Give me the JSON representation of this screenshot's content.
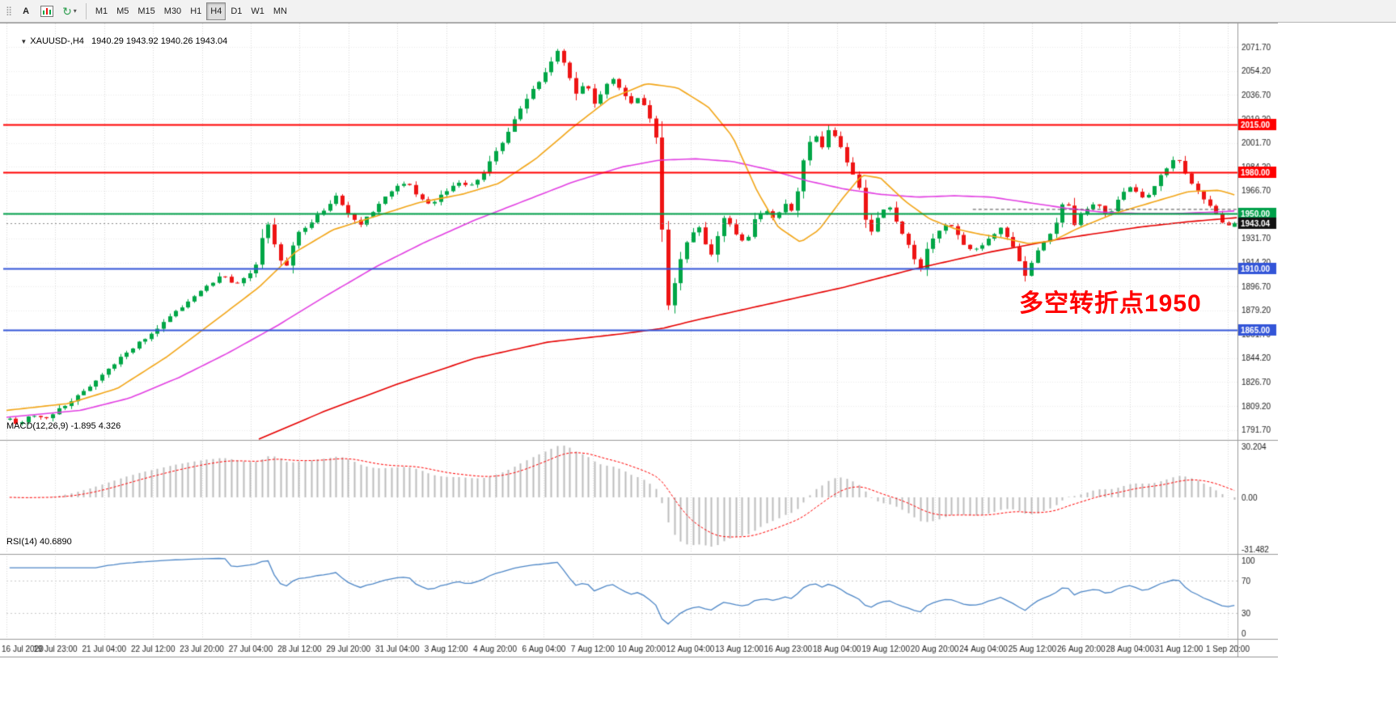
{
  "colors": {
    "bull": "#00A646",
    "bear": "#EE1414",
    "grid_v": "#D9D9D9",
    "grid_h": "#EBEBEB",
    "ma_fast_orange": "#F2A516",
    "ma_mid_magenta": "#E23FE2",
    "ma_slow_red": "#E60000",
    "hline_red": "#FF0000",
    "hline_green": "#00A04A",
    "hline_blue": "#3355D8",
    "price_badge_bg": "#121212",
    "macd_bar": "#BCBCBC",
    "macd_signal": "#FF0000",
    "rsi_line": "#4E87C7",
    "rsi_level": "#C9C9C9",
    "axis_text": "#1C1C1C",
    "border": "#9A9A9A",
    "annotation_red": "#FF0000",
    "trend_dark": "#4A4A4A"
  },
  "toolbar": {
    "text_tool_label": "A",
    "timeframes": [
      "M1",
      "M5",
      "M15",
      "M30",
      "H1",
      "H4",
      "D1",
      "W1",
      "MN"
    ],
    "active_timeframe": "H4"
  },
  "chart": {
    "symbol": "XAUUSD-",
    "timeframe": "H4",
    "symbol_line": "XAUUSD-,H4   1940.29 1943.92 1940.26 1943.04",
    "ohlc": {
      "open": "1940.29",
      "high": "1943.92",
      "low": "1940.26",
      "close": "1943.04"
    },
    "annotation_text": "多空转折点1950",
    "current_price": 1943.04,
    "current_price_label": "1943.04",
    "price_axis_labels": [
      "2071.70",
      "2054.20",
      "2036.70",
      "2019.20",
      "2001.70",
      "1984.20",
      "1966.70",
      "1949.20",
      "1931.70",
      "1914.20",
      "1896.70",
      "1879.20",
      "1861.70",
      "1844.20",
      "1826.70",
      "1809.20",
      "1791.70"
    ],
    "hlines": [
      {
        "label": "2015.00",
        "value": 2015.0,
        "color_key": "hline_red"
      },
      {
        "label": "1980.00",
        "value": 1980.0,
        "color_key": "hline_red"
      },
      {
        "label": "1950.00",
        "value": 1950.0,
        "color_key": "hline_green"
      },
      {
        "label": "1910.00",
        "value": 1910.0,
        "color_key": "hline_blue"
      },
      {
        "label": "1865.00",
        "value": 1865.0,
        "color_key": "hline_blue"
      }
    ],
    "date_labels": [
      "16 Jul 2020",
      "19 Jul 23:00",
      "21 Jul 04:00",
      "22 Jul 12:00",
      "23 Jul 20:00",
      "27 Jul 04:00",
      "28 Jul 12:00",
      "29 Jul 20:00",
      "31 Jul 04:00",
      "3 Aug 12:00",
      "4 Aug 20:00",
      "6 Aug 04:00",
      "7 Aug 12:00",
      "10 Aug 20:00",
      "12 Aug 04:00",
      "13 Aug 12:00",
      "16 Aug 23:00",
      "18 Aug 04:00",
      "19 Aug 12:00",
      "20 Aug 20:00",
      "24 Aug 04:00",
      "25 Aug 12:00",
      "26 Aug 20:00",
      "28 Aug 04:00",
      "31 Aug 12:00",
      "1 Sep 20:00"
    ]
  },
  "indicators": {
    "macd": {
      "label": "MACD(12,26,9) -1.895 4.326",
      "fast": 12,
      "slow": 26,
      "signal": 9,
      "value": "-1.895",
      "signal_value": "4.326",
      "axis": [
        "30.204",
        "0.00",
        "-31.482"
      ]
    },
    "rsi": {
      "label": "RSI(14) 40.6890",
      "period": 14,
      "value": "40.6890",
      "axis": [
        "100",
        "70",
        "30",
        "0"
      ],
      "levels": [
        70,
        30
      ]
    }
  },
  "chart_data": {
    "type": "candlestick",
    "title": "XAUUSD- H4",
    "ylim": [
      1785,
      2089
    ],
    "grid": true,
    "candle_count": 200,
    "noise_seed": 1113,
    "last_candle_ohlc": [
      1940.29,
      1943.92,
      1940.26,
      1943.04
    ],
    "price_anchors": [
      [
        0.0,
        1800
      ],
      [
        0.01,
        1796
      ],
      [
        0.02,
        1803
      ],
      [
        0.032,
        1799
      ],
      [
        0.044,
        1808
      ],
      [
        0.054,
        1814
      ],
      [
        0.064,
        1821
      ],
      [
        0.074,
        1828
      ],
      [
        0.084,
        1838
      ],
      [
        0.096,
        1847
      ],
      [
        0.108,
        1856
      ],
      [
        0.122,
        1865
      ],
      [
        0.135,
        1877
      ],
      [
        0.15,
        1887
      ],
      [
        0.163,
        1897
      ],
      [
        0.175,
        1905
      ],
      [
        0.185,
        1898
      ],
      [
        0.196,
        1904
      ],
      [
        0.203,
        1913
      ],
      [
        0.209,
        1939
      ],
      [
        0.214,
        1943
      ],
      [
        0.22,
        1918
      ],
      [
        0.227,
        1911
      ],
      [
        0.236,
        1935
      ],
      [
        0.247,
        1944
      ],
      [
        0.258,
        1953
      ],
      [
        0.268,
        1963
      ],
      [
        0.277,
        1951
      ],
      [
        0.286,
        1941
      ],
      [
        0.296,
        1950
      ],
      [
        0.306,
        1961
      ],
      [
        0.316,
        1969
      ],
      [
        0.325,
        1973
      ],
      [
        0.335,
        1962
      ],
      [
        0.345,
        1956
      ],
      [
        0.356,
        1966
      ],
      [
        0.366,
        1974
      ],
      [
        0.376,
        1969
      ],
      [
        0.385,
        1977
      ],
      [
        0.395,
        1991
      ],
      [
        0.405,
        2006
      ],
      [
        0.415,
        2022
      ],
      [
        0.425,
        2037
      ],
      [
        0.434,
        2049
      ],
      [
        0.442,
        2061
      ],
      [
        0.449,
        2070
      ],
      [
        0.456,
        2052
      ],
      [
        0.463,
        2037
      ],
      [
        0.47,
        2047
      ],
      [
        0.477,
        2029
      ],
      [
        0.485,
        2041
      ],
      [
        0.492,
        2049
      ],
      [
        0.5,
        2039
      ],
      [
        0.508,
        2031
      ],
      [
        0.515,
        2035
      ],
      [
        0.523,
        2019
      ],
      [
        0.528,
        2003
      ],
      [
        0.533,
        1931
      ],
      [
        0.538,
        1877
      ],
      [
        0.543,
        1902
      ],
      [
        0.55,
        1925
      ],
      [
        0.561,
        1942
      ],
      [
        0.572,
        1919
      ],
      [
        0.583,
        1947
      ],
      [
        0.593,
        1935
      ],
      [
        0.6,
        1928
      ],
      [
        0.608,
        1946
      ],
      [
        0.616,
        1954
      ],
      [
        0.624,
        1944
      ],
      [
        0.632,
        1958
      ],
      [
        0.639,
        1950
      ],
      [
        0.648,
        1991
      ],
      [
        0.655,
        2010
      ],
      [
        0.662,
        1998
      ],
      [
        0.668,
        2013
      ],
      [
        0.676,
        2002
      ],
      [
        0.684,
        1985
      ],
      [
        0.692,
        1971
      ],
      [
        0.7,
        1933
      ],
      [
        0.708,
        1948
      ],
      [
        0.716,
        1957
      ],
      [
        0.726,
        1938
      ],
      [
        0.735,
        1922
      ],
      [
        0.742,
        1909
      ],
      [
        0.75,
        1930
      ],
      [
        0.757,
        1937
      ],
      [
        0.765,
        1944
      ],
      [
        0.775,
        1930
      ],
      [
        0.785,
        1922
      ],
      [
        0.796,
        1930
      ],
      [
        0.808,
        1939
      ],
      [
        0.818,
        1925
      ],
      [
        0.828,
        1904
      ],
      [
        0.835,
        1920
      ],
      [
        0.845,
        1932
      ],
      [
        0.855,
        1947
      ],
      [
        0.86,
        1968
      ],
      [
        0.866,
        1939
      ],
      [
        0.874,
        1952
      ],
      [
        0.885,
        1959
      ],
      [
        0.895,
        1948
      ],
      [
        0.905,
        1964
      ],
      [
        0.914,
        1970
      ],
      [
        0.925,
        1960
      ],
      [
        0.935,
        1974
      ],
      [
        0.945,
        1987
      ],
      [
        0.951,
        1992
      ],
      [
        0.958,
        1979
      ],
      [
        0.966,
        1968
      ],
      [
        0.974,
        1958
      ],
      [
        0.982,
        1951
      ],
      [
        0.99,
        1941
      ],
      [
        1.0,
        1943
      ]
    ],
    "ma_orange_anchors": [
      [
        0.0,
        1806
      ],
      [
        0.05,
        1811
      ],
      [
        0.09,
        1822
      ],
      [
        0.13,
        1845
      ],
      [
        0.17,
        1872
      ],
      [
        0.205,
        1896
      ],
      [
        0.235,
        1922
      ],
      [
        0.265,
        1938
      ],
      [
        0.3,
        1948
      ],
      [
        0.335,
        1958
      ],
      [
        0.37,
        1964
      ],
      [
        0.4,
        1972
      ],
      [
        0.43,
        1990
      ],
      [
        0.46,
        2013
      ],
      [
        0.49,
        2034
      ],
      [
        0.52,
        2045
      ],
      [
        0.545,
        2042
      ],
      [
        0.57,
        2028
      ],
      [
        0.59,
        2006
      ],
      [
        0.61,
        1966
      ],
      [
        0.627,
        1940
      ],
      [
        0.645,
        1929
      ],
      [
        0.66,
        1938
      ],
      [
        0.68,
        1962
      ],
      [
        0.695,
        1978
      ],
      [
        0.71,
        1976
      ],
      [
        0.73,
        1959
      ],
      [
        0.75,
        1946
      ],
      [
        0.77,
        1939
      ],
      [
        0.79,
        1935
      ],
      [
        0.81,
        1932
      ],
      [
        0.83,
        1928
      ],
      [
        0.85,
        1930
      ],
      [
        0.87,
        1939
      ],
      [
        0.9,
        1950
      ],
      [
        0.93,
        1958
      ],
      [
        0.96,
        1966
      ],
      [
        0.985,
        1967
      ],
      [
        1.0,
        1963
      ]
    ],
    "ma_magenta_anchors": [
      [
        0.0,
        1801
      ],
      [
        0.06,
        1806
      ],
      [
        0.1,
        1815
      ],
      [
        0.14,
        1830
      ],
      [
        0.18,
        1848
      ],
      [
        0.22,
        1868
      ],
      [
        0.26,
        1890
      ],
      [
        0.3,
        1911
      ],
      [
        0.34,
        1929
      ],
      [
        0.38,
        1945
      ],
      [
        0.42,
        1959
      ],
      [
        0.46,
        1973
      ],
      [
        0.5,
        1984
      ],
      [
        0.53,
        1989
      ],
      [
        0.56,
        1990
      ],
      [
        0.59,
        1988
      ],
      [
        0.62,
        1982
      ],
      [
        0.65,
        1974
      ],
      [
        0.68,
        1968
      ],
      [
        0.71,
        1964
      ],
      [
        0.74,
        1962
      ],
      [
        0.77,
        1963
      ],
      [
        0.8,
        1962
      ],
      [
        0.83,
        1958
      ],
      [
        0.86,
        1954
      ],
      [
        0.89,
        1951
      ],
      [
        0.92,
        1950
      ],
      [
        0.95,
        1950
      ],
      [
        0.98,
        1951
      ],
      [
        1.0,
        1952
      ]
    ],
    "ma_red_anchors": [
      [
        0.205,
        1785
      ],
      [
        0.26,
        1806
      ],
      [
        0.32,
        1826
      ],
      [
        0.38,
        1844
      ],
      [
        0.44,
        1856
      ],
      [
        0.5,
        1862
      ],
      [
        0.533,
        1866
      ],
      [
        0.56,
        1872
      ],
      [
        0.62,
        1884
      ],
      [
        0.68,
        1896
      ],
      [
        0.74,
        1910
      ],
      [
        0.8,
        1922
      ],
      [
        0.86,
        1932
      ],
      [
        0.92,
        1940
      ],
      [
        0.96,
        1944
      ],
      [
        1.0,
        1947
      ]
    ],
    "trend_segment": {
      "from": 0.785,
      "to": 1.0,
      "price": 1953
    }
  }
}
